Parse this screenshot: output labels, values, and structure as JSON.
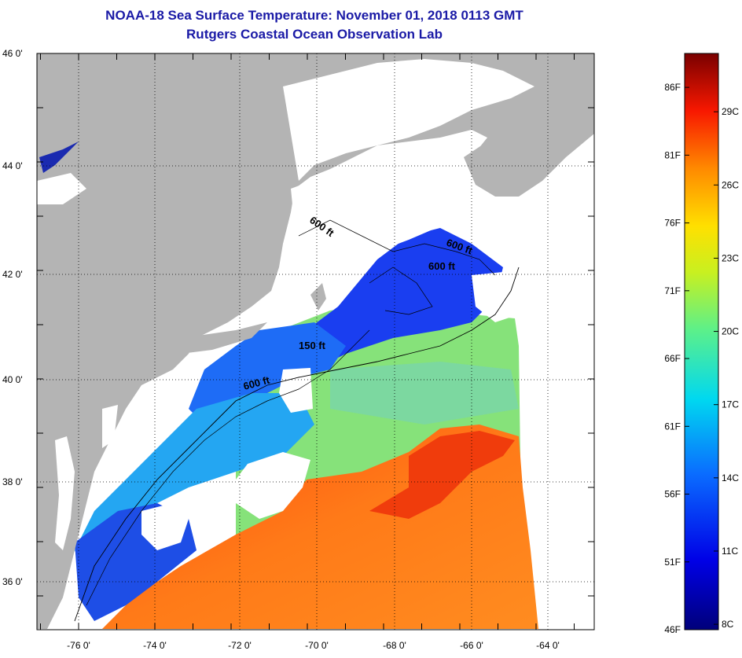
{
  "header": {
    "title": "NOAA-18 Sea Surface Temperature:  November 01, 2018 0113 GMT",
    "subtitle": "Rutgers Coastal Ocean Observation Lab"
  },
  "map": {
    "lon_ticks": [
      "-76 0'",
      "-74 0'",
      "-72 0'",
      "-70 0'",
      "-68 0'",
      "-66 0'",
      "-64 0'"
    ],
    "lat_ticks": [
      "46 0'",
      "44 0'",
      "42 0'",
      "40 0'",
      "38 0'",
      "36 0'"
    ],
    "depth_labels": [
      "600 ft",
      "600 ft",
      "600 ft",
      "150 ft",
      "600 ft"
    ],
    "colors": {
      "land": "#b4b4b4",
      "cloud": "#ffffff",
      "frame": "#000000"
    }
  },
  "colorbar": {
    "f_labels": [
      "86F",
      "81F",
      "76F",
      "71F",
      "66F",
      "61F",
      "56F",
      "51F",
      "46F"
    ],
    "c_labels": [
      "29C",
      "26C",
      "23C",
      "20C",
      "17C",
      "14C",
      "11C",
      "8C"
    ],
    "f_values": [
      86,
      81,
      76,
      71,
      66,
      61,
      56,
      51,
      46
    ],
    "c_values": [
      29,
      26,
      23,
      20,
      17,
      14,
      11,
      8
    ]
  }
}
